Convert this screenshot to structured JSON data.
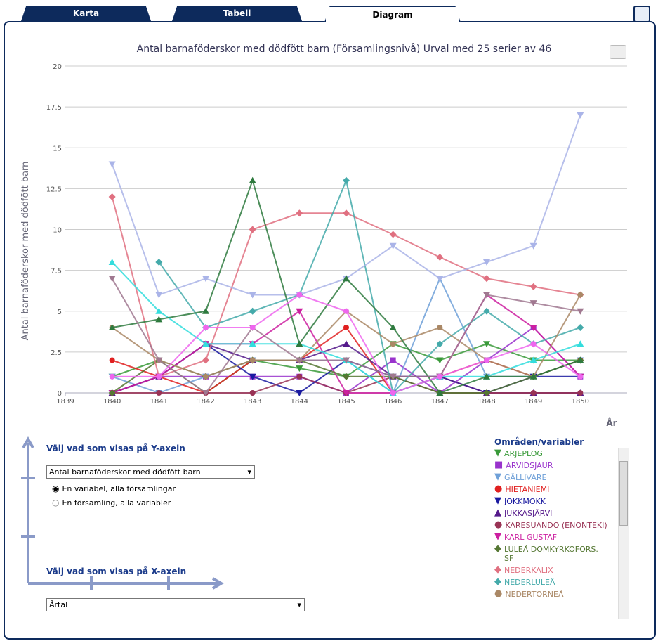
{
  "tabs": [
    "Karta",
    "Tabell",
    "Diagram"
  ],
  "chart_data": {
    "type": "line",
    "title": "Antal barnaföderskor med dödfött barn (Församlingsnivå) Urval med 25 serier av 46",
    "y_label": "Antal barnaföderskor med dödfött barn",
    "x_label": "År",
    "x": [
      1840,
      1841,
      1842,
      1843,
      1844,
      1845,
      1846,
      1847,
      1848,
      1849,
      1850
    ],
    "xlim": [
      1839,
      1851
    ],
    "xticks": [
      1839,
      1840,
      1841,
      1842,
      1843,
      1844,
      1845,
      1846,
      1847,
      1848,
      1849,
      1850
    ],
    "ylim": [
      0,
      20
    ],
    "yticks": [
      0,
      2.5,
      5,
      7.5,
      10,
      12.5,
      15,
      17.5,
      20
    ],
    "grid": true,
    "legend_title": "Områden/variabler",
    "series": [
      {
        "name": "ARJEPLOG",
        "color": "#3a9a3a",
        "marker": "triangle-down",
        "values": [
          1,
          2,
          0,
          2,
          1.5,
          1,
          3,
          2,
          3,
          2,
          2
        ]
      },
      {
        "name": "ARVIDSJAUR",
        "color": "#9933cc",
        "marker": "square",
        "values": [
          0,
          1,
          1,
          1,
          1,
          0,
          2,
          0,
          2,
          4,
          1
        ]
      },
      {
        "name": "GÄLLIVARE",
        "color": "#6fa0d8",
        "marker": "triangle-down",
        "values": [
          1,
          0,
          1,
          2,
          2,
          2,
          0,
          7,
          1,
          1,
          2
        ]
      },
      {
        "name": "HIETANIEMI",
        "color": "#e02020",
        "marker": "circle",
        "values": [
          2,
          1,
          0,
          2,
          2,
          4,
          0,
          1,
          2,
          1,
          2
        ]
      },
      {
        "name": "JOKKMOKK",
        "color": "#1a1aa0",
        "marker": "triangle-down",
        "values": [
          0,
          1,
          3,
          1,
          0,
          2,
          1,
          1,
          0,
          1,
          1
        ]
      },
      {
        "name": "JUKKASJÄRVI",
        "color": "#551a8b",
        "marker": "triangle",
        "values": [
          0,
          1,
          3,
          2,
          2,
          3,
          1,
          1,
          0,
          0,
          0
        ]
      },
      {
        "name": "KARESUANDO (ENONTEKI)",
        "color": "#993355",
        "marker": "circle",
        "values": [
          0,
          0,
          0,
          0,
          1,
          0,
          1,
          0,
          0,
          0,
          0
        ]
      },
      {
        "name": "KARL GUSTAF",
        "color": "#cc1fa0",
        "marker": "triangle-down",
        "values": [
          0,
          1,
          3,
          3,
          5,
          0,
          0,
          1,
          6,
          4,
          1
        ]
      },
      {
        "name": "LULEÅ DOMKYRKOFÖRS. SF",
        "color": "#557733",
        "marker": "diamond",
        "values": [
          0,
          2,
          1,
          2,
          2,
          1,
          1,
          0,
          0,
          1,
          2
        ]
      },
      {
        "name": "NEDERKALIX",
        "color": "#e07080",
        "marker": "diamond",
        "values": [
          12,
          1,
          2,
          10,
          11,
          11,
          9.7,
          8.3,
          7,
          6.5,
          6
        ]
      },
      {
        "name": "NEDERLULEÅ",
        "color": "#44aaaa",
        "marker": "diamond",
        "values": [
          null,
          8,
          4,
          5,
          6,
          13,
          0,
          3,
          5,
          3,
          4
        ]
      },
      {
        "name": "NEDERTORNEÅ",
        "color": "#aa8866",
        "marker": "circle",
        "values": [
          4,
          2,
          1,
          2,
          2,
          5,
          3,
          4,
          2,
          1,
          6
        ]
      },
      {
        "color": "#aab4e8",
        "marker": "triangle-down",
        "values": [
          14,
          6,
          7,
          6,
          6,
          7,
          9,
          7,
          8,
          9,
          17
        ]
      },
      {
        "color": "#33dddd",
        "marker": "triangle",
        "values": [
          8,
          5,
          3,
          3,
          3,
          2,
          0,
          1,
          1,
          2,
          3
        ]
      },
      {
        "color": "#2e7a3e",
        "marker": "triangle",
        "values": [
          4,
          4.5,
          5,
          13,
          3,
          7,
          4,
          0,
          1,
          1,
          2
        ]
      },
      {
        "color": "#a07890",
        "marker": "triangle-down",
        "values": [
          7,
          2,
          0,
          4,
          2,
          2,
          1,
          1,
          6,
          5.5,
          5
        ]
      },
      {
        "color": "#ee66ee",
        "marker": "circle",
        "values": [
          1,
          1,
          4,
          4,
          6,
          5,
          0,
          1,
          2,
          3,
          1
        ]
      }
    ]
  },
  "controls": {
    "y_heading": "Välj vad som visas på Y-axeln",
    "y_select": "Antal barnaföderskor med dödfött barn",
    "radios": [
      "En variabel, alla församlingar",
      "En församling, alla variabler"
    ],
    "x_heading": "Välj vad som visas på X-axeln",
    "x_select": "Årtal"
  }
}
